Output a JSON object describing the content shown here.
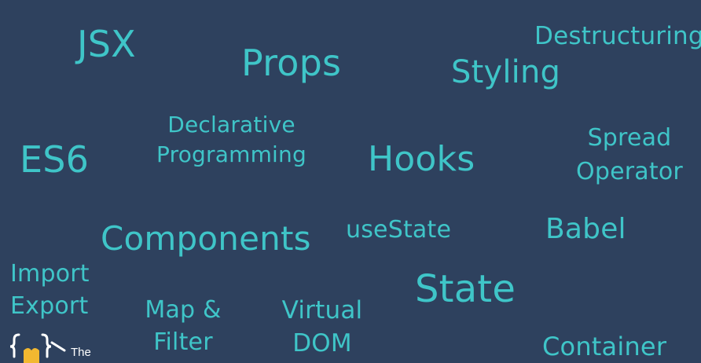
{
  "background_color": "#2e415e",
  "text_color": "#3fc5c8",
  "terms": {
    "jsx": "JSX",
    "props": "Props",
    "styling": "Styling",
    "destructuring": "Destructuring",
    "es6": "ES6",
    "declarative": [
      "Declarative",
      "Programming"
    ],
    "hooks": "Hooks",
    "spread": [
      "Spread",
      "Operator"
    ],
    "components": "Components",
    "usestate": "useState",
    "babel": "Babel",
    "import_export": [
      "Import",
      "Export"
    ],
    "state": "State",
    "map_filter": [
      "Map &",
      "Filter"
    ],
    "virtual_dom": [
      "Virtual",
      "DOM"
    ],
    "container": "Container"
  },
  "logo": {
    "icon": "braces-logo-icon",
    "text": "The",
    "colors": {
      "braces": "#ffffff",
      "badge": "#f2b830"
    }
  }
}
